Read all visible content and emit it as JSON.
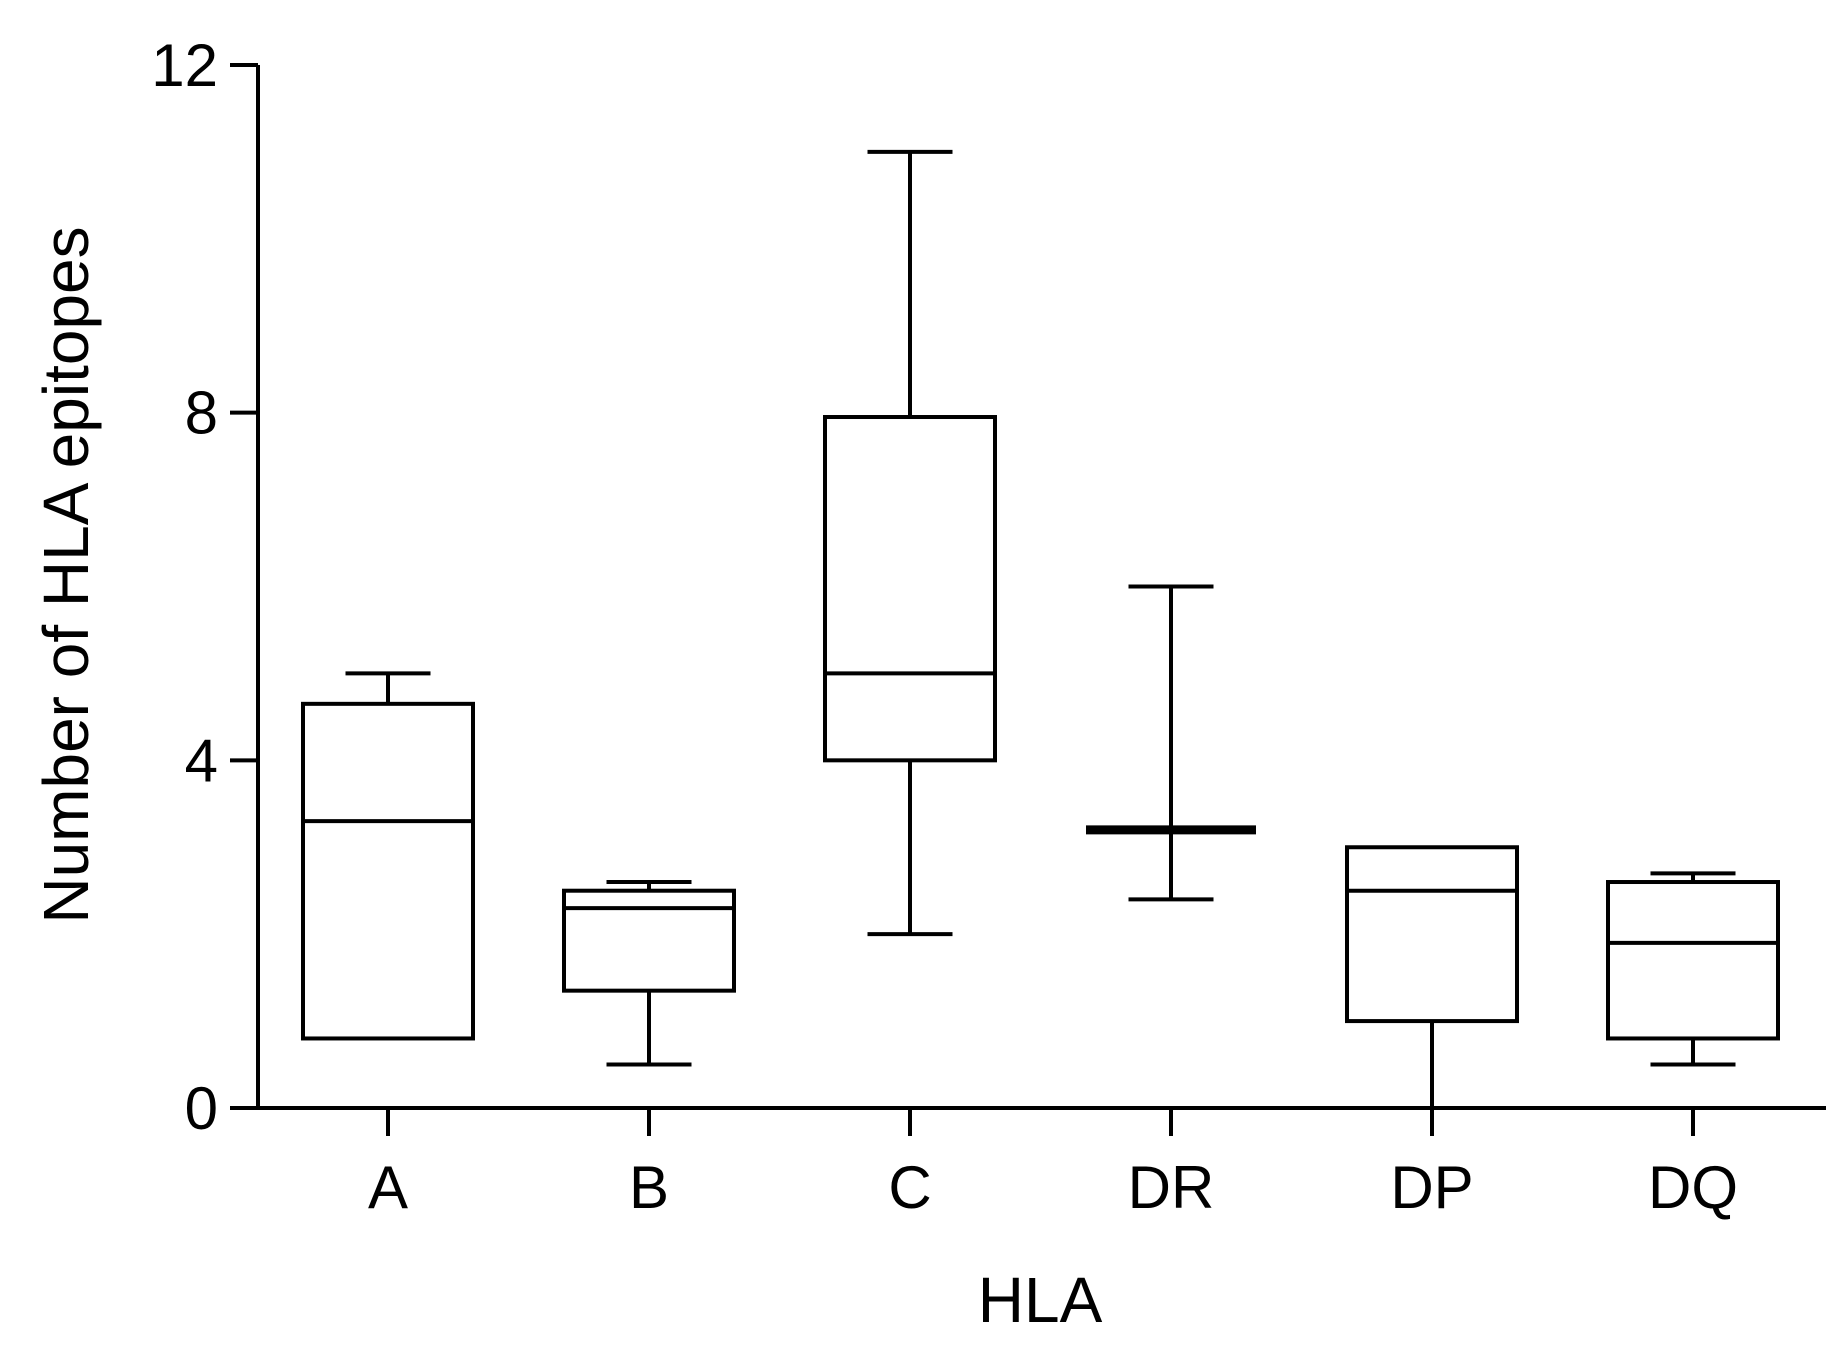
{
  "chart_data": {
    "type": "box",
    "xlabel": "HLA",
    "ylabel": "Number of HLA epitopes",
    "ylim": [
      0,
      12
    ],
    "yticks": [
      0,
      4,
      8,
      12
    ],
    "grid": false,
    "categories": [
      "A",
      "B",
      "C",
      "DR",
      "DP",
      "DQ"
    ],
    "boxes": [
      {
        "category": "A",
        "min": 0.8,
        "q1": 0.8,
        "median": 3.3,
        "q3": 4.65,
        "max": 5.0
      },
      {
        "category": "B",
        "min": 0.5,
        "q1": 1.35,
        "median": 2.3,
        "q3": 2.5,
        "max": 2.6
      },
      {
        "category": "C",
        "min": 2.0,
        "q1": 4.0,
        "median": 5.0,
        "q3": 7.95,
        "max": 11.0
      },
      {
        "category": "DR",
        "min": 2.4,
        "q1": 3.2,
        "median": 3.2,
        "q3": 3.2,
        "max": 6.0
      },
      {
        "category": "DP",
        "min": 0.0,
        "q1": 1.0,
        "median": 2.5,
        "q3": 3.0,
        "max": 3.0
      },
      {
        "category": "DQ",
        "min": 0.5,
        "q1": 0.8,
        "median": 1.9,
        "q3": 2.6,
        "max": 2.7
      }
    ],
    "colors": {
      "stroke": "#000000",
      "fill": "#ffffff"
    }
  }
}
